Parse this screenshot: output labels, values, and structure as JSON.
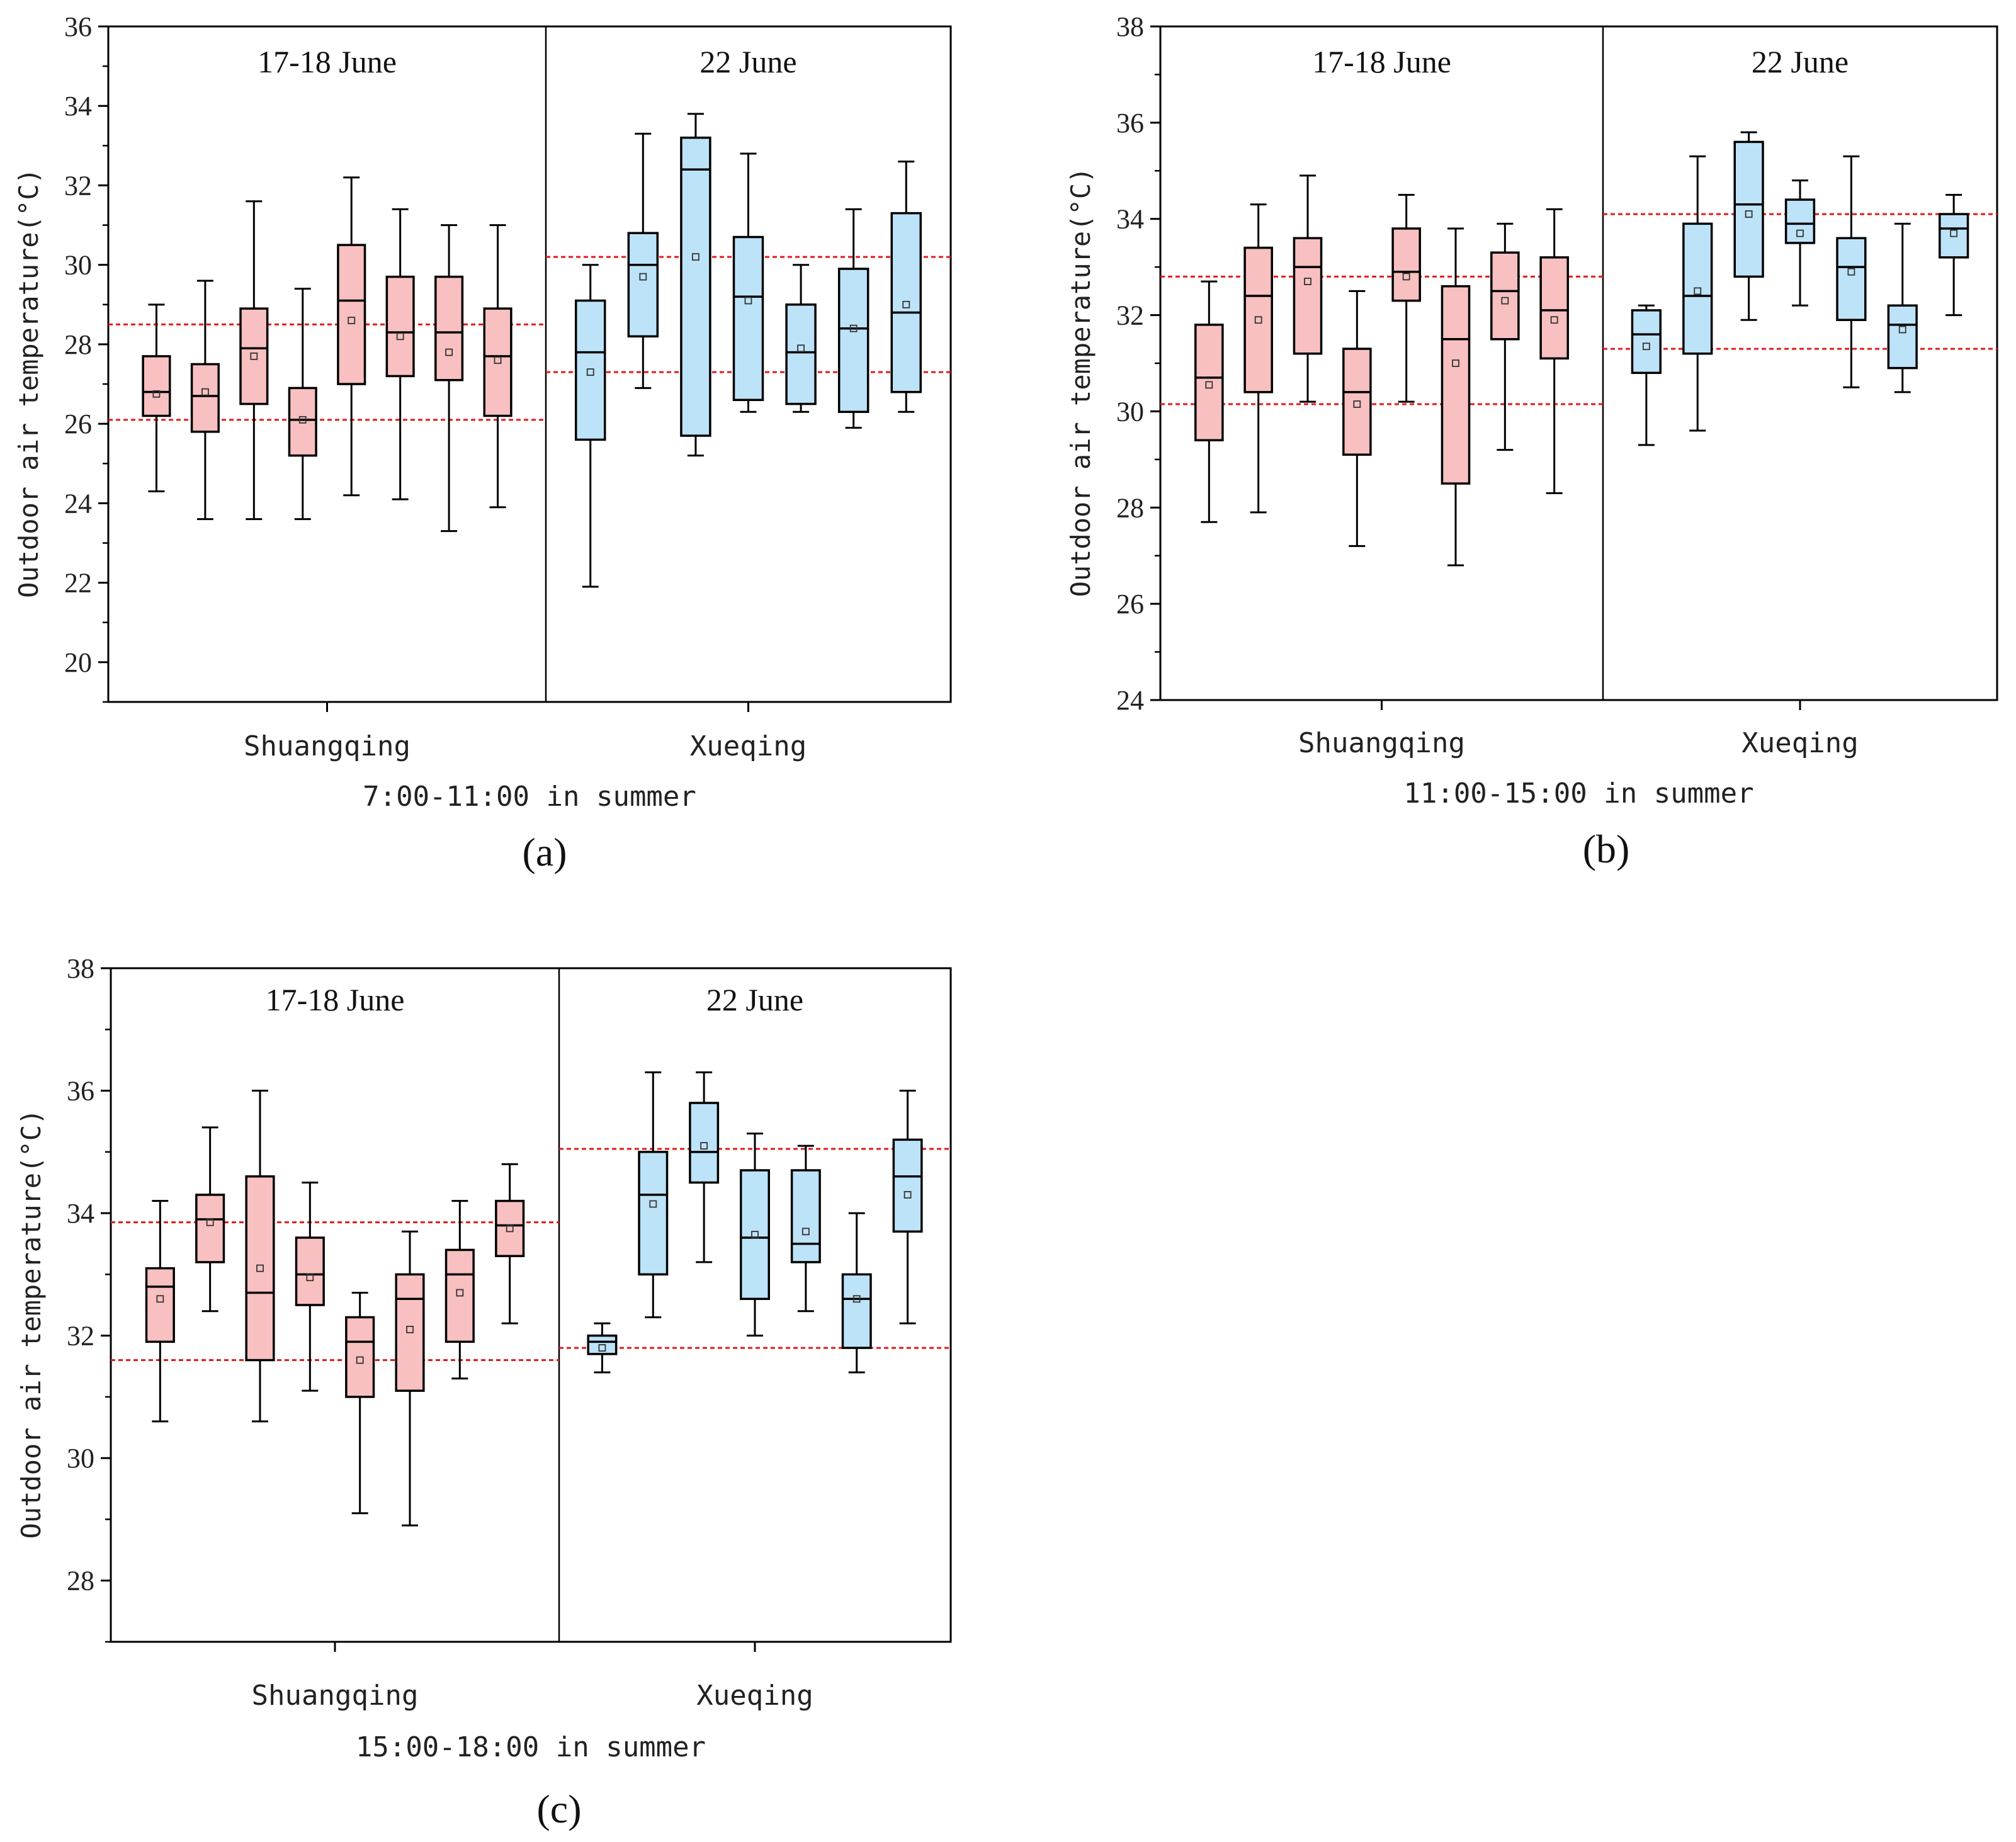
{
  "chart_data": [
    {
      "id": "a",
      "type": "box",
      "panel_label": "(a)",
      "xlabel": "7:00-11:00 in summer",
      "ylabel": "Outdoor air temperature(°C)",
      "ylim": [
        19,
        36
      ],
      "yticks": [
        20,
        22,
        24,
        26,
        28,
        30,
        32,
        34,
        36
      ],
      "groups": [
        {
          "name": "Shuangqing",
          "period": "17-18 June",
          "color": "#f8c0c0",
          "ref_lines": [
            28.5,
            26.1
          ],
          "boxes": [
            {
              "min": 24.3,
              "q1": 26.2,
              "median": 26.8,
              "q3": 27.7,
              "max": 29.0,
              "mean": 26.75
            },
            {
              "min": 23.6,
              "q1": 25.8,
              "median": 26.7,
              "q3": 27.5,
              "max": 29.6,
              "mean": 26.8
            },
            {
              "min": 23.6,
              "q1": 26.5,
              "median": 27.9,
              "q3": 28.9,
              "max": 31.6,
              "mean": 27.7
            },
            {
              "min": 23.6,
              "q1": 25.2,
              "median": 26.1,
              "q3": 26.9,
              "max": 29.4,
              "mean": 26.1
            },
            {
              "min": 24.2,
              "q1": 27.0,
              "median": 29.1,
              "q3": 30.5,
              "max": 32.2,
              "mean": 28.6
            },
            {
              "min": 24.1,
              "q1": 27.2,
              "median": 28.3,
              "q3": 29.7,
              "max": 31.4,
              "mean": 28.2
            },
            {
              "min": 23.3,
              "q1": 27.1,
              "median": 28.3,
              "q3": 29.7,
              "max": 31.0,
              "mean": 27.8
            },
            {
              "min": 23.9,
              "q1": 26.2,
              "median": 27.7,
              "q3": 28.9,
              "max": 31.0,
              "mean": 27.6
            }
          ]
        },
        {
          "name": "Xueqing",
          "period": "22 June",
          "color": "#bde3f8",
          "ref_lines": [
            30.2,
            27.3
          ],
          "boxes": [
            {
              "min": 21.9,
              "q1": 25.6,
              "median": 27.8,
              "q3": 29.1,
              "max": 30.0,
              "mean": 27.3
            },
            {
              "min": 26.9,
              "q1": 28.2,
              "median": 30.0,
              "q3": 30.8,
              "max": 33.3,
              "mean": 29.7
            },
            {
              "min": 25.2,
              "q1": 25.7,
              "median": 32.4,
              "q3": 33.2,
              "max": 33.8,
              "mean": 30.2
            },
            {
              "min": 26.3,
              "q1": 26.6,
              "median": 29.2,
              "q3": 30.7,
              "max": 32.8,
              "mean": 29.1
            },
            {
              "min": 26.3,
              "q1": 26.5,
              "median": 27.8,
              "q3": 29.0,
              "max": 30.0,
              "mean": 27.9
            },
            {
              "min": 25.9,
              "q1": 26.3,
              "median": 28.4,
              "q3": 29.9,
              "max": 31.4,
              "mean": 28.4
            },
            {
              "min": 26.3,
              "q1": 26.8,
              "median": 28.8,
              "q3": 31.3,
              "max": 32.6,
              "mean": 29.0
            }
          ]
        }
      ]
    },
    {
      "id": "b",
      "type": "box",
      "panel_label": "(b)",
      "xlabel": "11:00-15:00 in summer",
      "ylabel": "Outdoor air temperature(°C)",
      "ylim": [
        24,
        38
      ],
      "yticks": [
        24,
        26,
        28,
        30,
        32,
        34,
        36,
        38
      ],
      "groups": [
        {
          "name": "Shuangqing",
          "period": "17-18 June",
          "color": "#f8c0c0",
          "ref_lines": [
            32.8,
            30.15
          ],
          "boxes": [
            {
              "min": 27.7,
              "q1": 29.4,
              "median": 30.7,
              "q3": 31.8,
              "max": 32.7,
              "mean": 30.55
            },
            {
              "min": 27.9,
              "q1": 30.4,
              "median": 32.4,
              "q3": 33.4,
              "max": 34.3,
              "mean": 31.9
            },
            {
              "min": 30.2,
              "q1": 31.2,
              "median": 33.0,
              "q3": 33.6,
              "max": 34.9,
              "mean": 32.7
            },
            {
              "min": 27.2,
              "q1": 29.1,
              "median": 30.4,
              "q3": 31.3,
              "max": 32.5,
              "mean": 30.15
            },
            {
              "min": 30.2,
              "q1": 32.3,
              "median": 32.9,
              "q3": 33.8,
              "max": 34.5,
              "mean": 32.8
            },
            {
              "min": 26.8,
              "q1": 28.5,
              "median": 31.5,
              "q3": 32.6,
              "max": 33.8,
              "mean": 31.0
            },
            {
              "min": 29.2,
              "q1": 31.5,
              "median": 32.5,
              "q3": 33.3,
              "max": 33.9,
              "mean": 32.3
            },
            {
              "min": 28.3,
              "q1": 31.1,
              "median": 32.1,
              "q3": 33.2,
              "max": 34.2,
              "mean": 31.9
            }
          ]
        },
        {
          "name": "Xueqing",
          "period": "22 June",
          "color": "#bde3f8",
          "ref_lines": [
            34.1,
            31.3
          ],
          "boxes": [
            {
              "min": 29.3,
              "q1": 30.8,
              "median": 31.6,
              "q3": 32.1,
              "max": 32.2,
              "mean": 31.35
            },
            {
              "min": 29.6,
              "q1": 31.2,
              "median": 32.4,
              "q3": 33.9,
              "max": 35.3,
              "mean": 32.5
            },
            {
              "min": 31.9,
              "q1": 32.8,
              "median": 34.3,
              "q3": 35.6,
              "max": 35.8,
              "mean": 34.1
            },
            {
              "min": 32.2,
              "q1": 33.5,
              "median": 33.9,
              "q3": 34.4,
              "max": 34.8,
              "mean": 33.7
            },
            {
              "min": 30.5,
              "q1": 31.9,
              "median": 33.0,
              "q3": 33.6,
              "max": 35.3,
              "mean": 32.9
            },
            {
              "min": 30.4,
              "q1": 30.9,
              "median": 31.8,
              "q3": 32.2,
              "max": 33.9,
              "mean": 31.7
            },
            {
              "min": 32.0,
              "q1": 33.2,
              "median": 33.8,
              "q3": 34.1,
              "max": 34.5,
              "mean": 33.7
            }
          ]
        }
      ]
    },
    {
      "id": "c",
      "type": "box",
      "panel_label": "(c)",
      "xlabel": "15:00-18:00 in summer",
      "ylabel": "Outdoor air temperature(°C)",
      "ylim": [
        27,
        38
      ],
      "yticks": [
        28,
        30,
        32,
        34,
        36,
        38
      ],
      "groups": [
        {
          "name": "Shuangqing",
          "period": "17-18 June",
          "color": "#f8c0c0",
          "ref_lines": [
            33.85,
            31.6
          ],
          "boxes": [
            {
              "min": 30.6,
              "q1": 31.9,
              "median": 32.8,
              "q3": 33.1,
              "max": 34.2,
              "mean": 32.6
            },
            {
              "min": 32.4,
              "q1": 33.2,
              "median": 33.9,
              "q3": 34.3,
              "max": 35.4,
              "mean": 33.85
            },
            {
              "min": 30.6,
              "q1": 31.6,
              "median": 32.7,
              "q3": 34.6,
              "max": 36.0,
              "mean": 33.1
            },
            {
              "min": 31.1,
              "q1": 32.5,
              "median": 33.0,
              "q3": 33.6,
              "max": 34.5,
              "mean": 32.95
            },
            {
              "min": 29.1,
              "q1": 31.0,
              "median": 31.9,
              "q3": 32.3,
              "max": 32.7,
              "mean": 31.6
            },
            {
              "min": 28.9,
              "q1": 31.1,
              "median": 32.6,
              "q3": 33.0,
              "max": 33.7,
              "mean": 32.1
            },
            {
              "min": 31.3,
              "q1": 31.9,
              "median": 33.0,
              "q3": 33.4,
              "max": 34.2,
              "mean": 32.7
            },
            {
              "min": 32.2,
              "q1": 33.3,
              "median": 33.8,
              "q3": 34.2,
              "max": 34.8,
              "mean": 33.75
            }
          ]
        },
        {
          "name": "Xueqing",
          "period": "22 June",
          "color": "#bde3f8",
          "ref_lines": [
            35.05,
            31.8
          ],
          "boxes": [
            {
              "min": 31.4,
              "q1": 31.7,
              "median": 31.9,
              "q3": 32.0,
              "max": 32.2,
              "mean": 31.8
            },
            {
              "min": 32.3,
              "q1": 33.0,
              "median": 34.3,
              "q3": 35.0,
              "max": 36.3,
              "mean": 34.15
            },
            {
              "min": 33.2,
              "q1": 34.5,
              "median": 35.0,
              "q3": 35.8,
              "max": 36.3,
              "mean": 35.1
            },
            {
              "min": 32.0,
              "q1": 32.6,
              "median": 33.6,
              "q3": 34.7,
              "max": 35.3,
              "mean": 33.65
            },
            {
              "min": 32.4,
              "q1": 33.2,
              "median": 33.5,
              "q3": 34.7,
              "max": 35.1,
              "mean": 33.7
            },
            {
              "min": 31.4,
              "q1": 31.8,
              "median": 32.6,
              "q3": 33.0,
              "max": 34.0,
              "mean": 32.6
            },
            {
              "min": 32.2,
              "q1": 33.7,
              "median": 34.6,
              "q3": 35.2,
              "max": 36.0,
              "mean": 34.3
            }
          ]
        }
      ]
    }
  ],
  "colors": {
    "axis": "#000000",
    "ref_line": "#e31a1c",
    "box_edge": "#000000"
  }
}
